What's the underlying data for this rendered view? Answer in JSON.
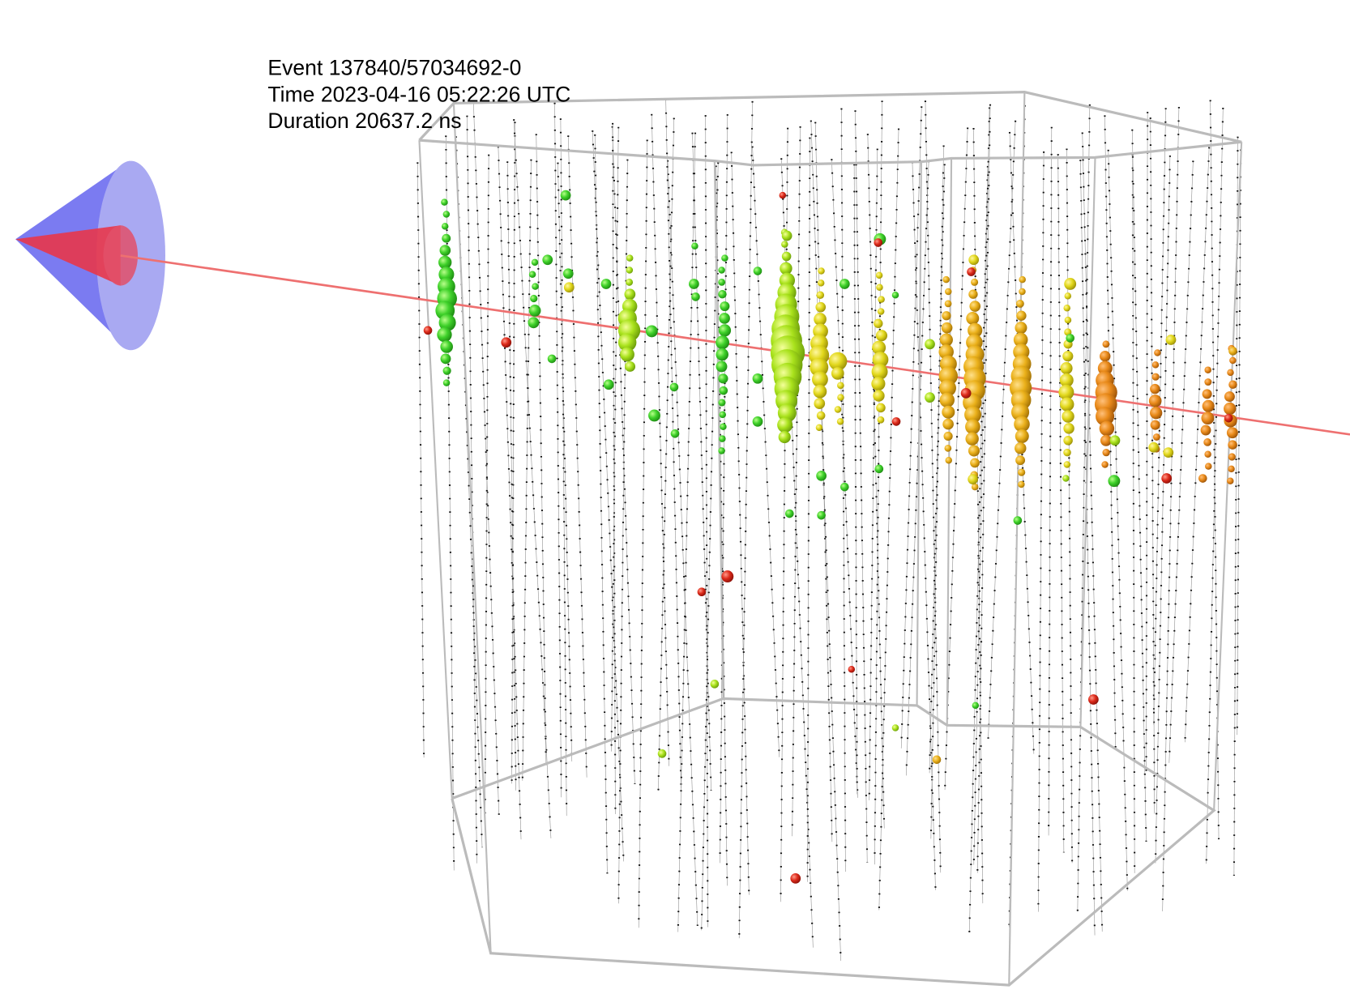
{
  "info": {
    "event": "Event 137840/57034692-0",
    "time": "Time 2023-04-16 05:22:26 UTC",
    "duration": "Duration 20637.2 ns"
  }
}
